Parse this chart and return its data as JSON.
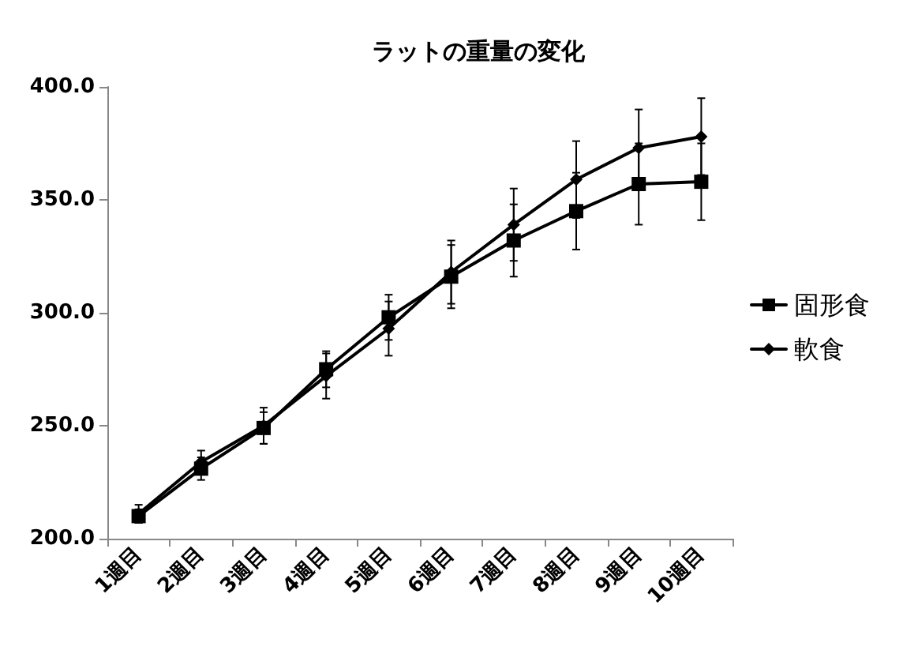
{
  "chart_data": {
    "type": "line",
    "title": "ラットの重量の変化",
    "categories": [
      "1週目",
      "2週目",
      "3週目",
      "4週目",
      "5週目",
      "6週目",
      "7週目",
      "8週目",
      "9週目",
      "10週目"
    ],
    "series": [
      {
        "name": "固形食",
        "color": "#000000",
        "marker": "square",
        "values": [
          210,
          231,
          249,
          275,
          298,
          316,
          332,
          345,
          357,
          358
        ],
        "errors": [
          3,
          5,
          7,
          8,
          10,
          14,
          16,
          17,
          18,
          17
        ]
      },
      {
        "name": "軟食",
        "color": "#000000",
        "marker": "diamond",
        "values": [
          211,
          234,
          250,
          272,
          293,
          318,
          339,
          359,
          373,
          378
        ],
        "errors": [
          4,
          5,
          8,
          10,
          12,
          14,
          16,
          17,
          17,
          17
        ]
      }
    ],
    "ylim": [
      200,
      400
    ],
    "yticks": [
      {
        "value": 200,
        "label": "200.0"
      },
      {
        "value": 250,
        "label": "250.0"
      },
      {
        "value": 300,
        "label": "300.0"
      },
      {
        "value": 350,
        "label": "350.0"
      },
      {
        "value": 400,
        "label": "400.0"
      }
    ],
    "grid": false,
    "legend": "right",
    "line_style": "solid"
  }
}
